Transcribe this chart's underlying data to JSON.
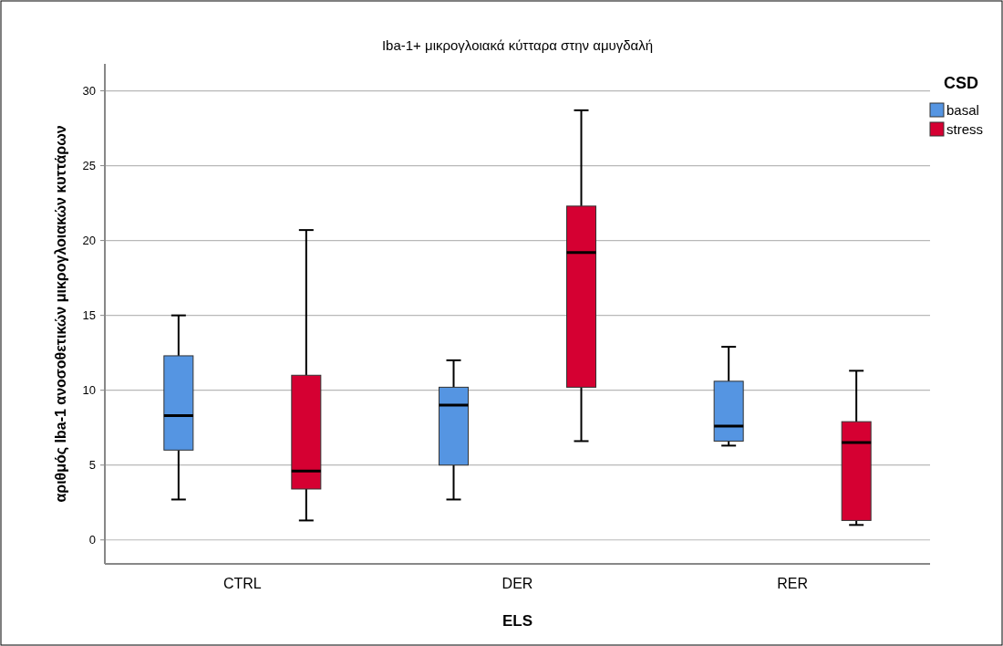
{
  "chart_data": {
    "type": "box",
    "title": "Iba-1+ μικρογλοιακά κύτταρα στην αμυγδαλή",
    "xlabel": "ELS",
    "ylabel": "αριθμός Iba-1 ανοσοθετικών μικρογλοιακών κυττάρων",
    "legend_title": "CSD",
    "categories": [
      "CTRL",
      "DER",
      "RER"
    ],
    "series": [
      {
        "name": "basal",
        "color": "#5595e2",
        "boxes": [
          {
            "low": 2.7,
            "q1": 6.0,
            "median": 8.3,
            "q3": 12.3,
            "high": 15.0
          },
          {
            "low": 2.7,
            "q1": 5.0,
            "median": 9.0,
            "q3": 10.2,
            "high": 12.0
          },
          {
            "low": 6.3,
            "q1": 6.6,
            "median": 7.6,
            "q3": 10.6,
            "high": 12.9
          }
        ]
      },
      {
        "name": "stress",
        "color": "#d50032",
        "boxes": [
          {
            "low": 1.3,
            "q1": 3.4,
            "median": 4.6,
            "q3": 11.0,
            "high": 20.7
          },
          {
            "low": 6.6,
            "q1": 10.2,
            "median": 19.2,
            "q3": 22.3,
            "high": 28.7
          },
          {
            "low": 1.0,
            "q1": 1.3,
            "median": 6.5,
            "q3": 7.9,
            "high": 11.3
          }
        ]
      }
    ],
    "ylim": [
      -1.6,
      31.8
    ],
    "yticks": [
      0,
      5,
      10,
      15,
      20,
      25,
      30
    ],
    "grid": "y",
    "legend": "top right"
  }
}
